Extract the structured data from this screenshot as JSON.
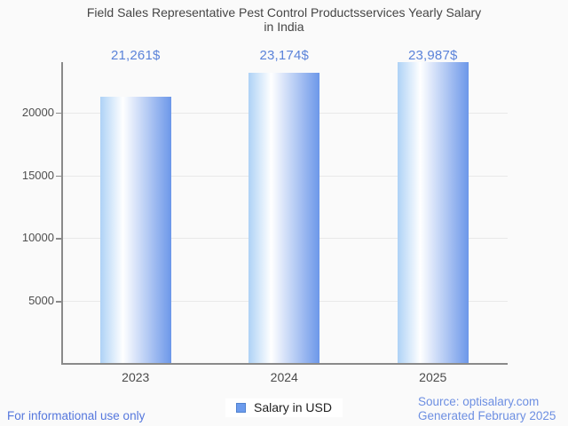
{
  "title_lines": [
    "Field Sales Representative Pest Control Productsservices Yearly Salary",
    "in India"
  ],
  "chart_data": {
    "type": "bar",
    "title": "Field Sales Representative Pest Control Productsservices Yearly Salary in India",
    "categories": [
      "2023",
      "2024",
      "2025"
    ],
    "series": [
      {
        "name": "Salary in USD",
        "values": [
          21261,
          23174,
          23987
        ]
      }
    ],
    "value_labels": [
      "21,261$",
      "23,174$",
      "23,987$"
    ],
    "xlabel": "",
    "ylabel": "",
    "yticks": [
      5000,
      10000,
      15000,
      20000
    ],
    "ylim": [
      0,
      24000
    ],
    "grid": true,
    "legend_position": "bottom"
  },
  "legend": {
    "label": "Salary in USD"
  },
  "footer": {
    "disclaimer": "For informational use only",
    "source": "Source: optisalary.com",
    "generated": "Generated February 2025"
  },
  "colors": {
    "value_label": "#5b83d9",
    "bar_gradient_left": "#aed2f6",
    "bar_gradient_mid": "#ffffff",
    "bar_gradient_right": "#6c97e9",
    "legend_swatch": "#6c9bed",
    "legend_swatch_border": "#4f81cf",
    "axis": "#8a8a8a",
    "gridline": "#e9e9e9",
    "title_text": "#454545",
    "footer_link": "#6d8fe2",
    "disclaimer_text": "#5577dd",
    "background": "#fafafa"
  }
}
